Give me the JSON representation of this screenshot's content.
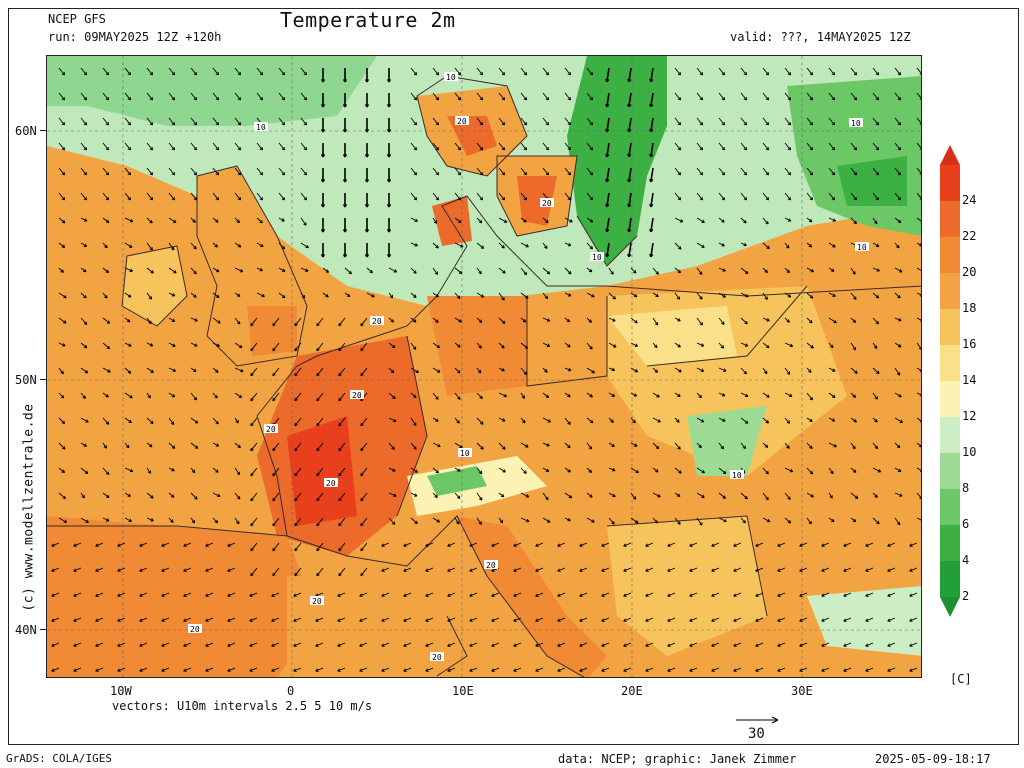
{
  "header": {
    "model": "NCEP GFS",
    "run": "run: 09MAY2025 12Z +120h",
    "title": "Temperature 2m",
    "valid": "valid: ???, 14MAY2025 12Z"
  },
  "axes": {
    "lat_labels": [
      "60N",
      "50N",
      "40N"
    ],
    "lon_labels": [
      "10W",
      "0",
      "10E",
      "20E",
      "30E"
    ]
  },
  "footer": {
    "vectors": "vectors: U10m intervals 2.5 5 10 m/s",
    "ref_vector_value": "30",
    "grads": "GrADS: COLA/IGES",
    "credits": "data: NCEP; graphic: Janek Zimmer",
    "timestamp": "2025-05-09-18:17"
  },
  "watermark": "(c) www.modellzentrale.de",
  "colorbar": {
    "unit": "[C]",
    "labels": [
      "24",
      "22",
      "20",
      "18",
      "16",
      "14",
      "12",
      "10",
      "8",
      "6",
      "4",
      "2"
    ],
    "colors": [
      "#e8401c",
      "#ec6a2a",
      "#f08a34",
      "#f3a442",
      "#f7c35c",
      "#fbe08a",
      "#fbf2b4",
      "#cdeec4",
      "#9ddb94",
      "#6cc766",
      "#3cb043",
      "#22a038"
    ]
  },
  "map_contour_labels": [
    "10",
    "20"
  ],
  "colors": {
    "sea_cool": "#bfe9bb",
    "land_warm": "#f3a442",
    "land_hot": "#ec6a2a",
    "cold": "#58bd5a",
    "border": "#3a2a2a"
  }
}
